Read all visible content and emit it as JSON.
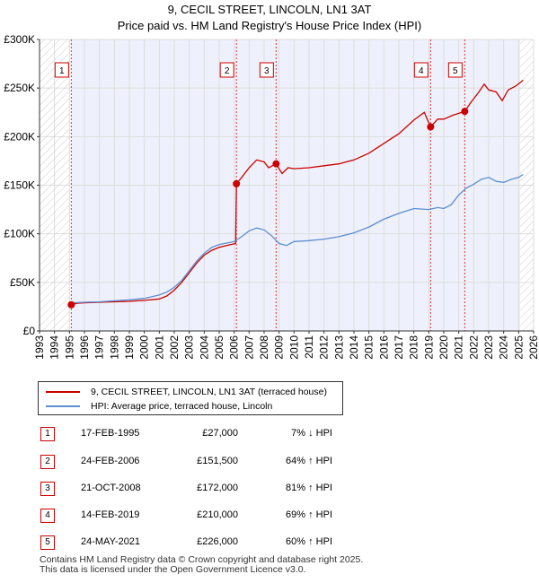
{
  "chart_data": {
    "type": "line",
    "title": "9, CECIL STREET, LINCOLN, LN1 3AT",
    "subtitle": "Price paid vs. HM Land Registry's House Price Index (HPI)",
    "xlabel": "",
    "ylabel": "",
    "xlim": [
      1993,
      2026
    ],
    "ylim": [
      0,
      300000
    ],
    "y_ticks": [
      {
        "value": 0,
        "label": "£0"
      },
      {
        "value": 50000,
        "label": "£50K"
      },
      {
        "value": 100000,
        "label": "£100K"
      },
      {
        "value": 150000,
        "label": "£150K"
      },
      {
        "value": 200000,
        "label": "£200K"
      },
      {
        "value": 250000,
        "label": "£250K"
      },
      {
        "value": 300000,
        "label": "£300K"
      }
    ],
    "x_ticks": [
      "1993",
      "1994",
      "1995",
      "1996",
      "1997",
      "1998",
      "1999",
      "2000",
      "2001",
      "2002",
      "2003",
      "2004",
      "2005",
      "2006",
      "2007",
      "2008",
      "2009",
      "2010",
      "2011",
      "2012",
      "2013",
      "2014",
      "2015",
      "2016",
      "2017",
      "2018",
      "2019",
      "2020",
      "2021",
      "2022",
      "2023",
      "2024",
      "2025",
      "2026"
    ],
    "grid": true,
    "series": [
      {
        "name": "9, CECIL STREET, LINCOLN, LN1 3AT (terraced house)",
        "color": "#cc0000",
        "points": [
          [
            1995.12,
            27000
          ],
          [
            1995.5,
            28500
          ],
          [
            1996,
            29000
          ],
          [
            1997,
            29500
          ],
          [
            1998,
            30000
          ],
          [
            1999,
            30500
          ],
          [
            2000,
            31500
          ],
          [
            2001,
            33000
          ],
          [
            2001.5,
            36000
          ],
          [
            2002,
            42000
          ],
          [
            2002.5,
            50000
          ],
          [
            2003,
            60000
          ],
          [
            2003.5,
            70000
          ],
          [
            2004,
            78000
          ],
          [
            2004.5,
            83000
          ],
          [
            2005,
            86000
          ],
          [
            2005.5,
            88000
          ],
          [
            2006.1,
            90000
          ],
          [
            2006.15,
            151500
          ],
          [
            2006.5,
            158000
          ],
          [
            2007,
            168000
          ],
          [
            2007.5,
            176000
          ],
          [
            2008,
            174000
          ],
          [
            2008.3,
            168000
          ],
          [
            2008.8,
            172000
          ],
          [
            2009.2,
            162000
          ],
          [
            2009.6,
            168000
          ],
          [
            2010,
            167000
          ],
          [
            2011,
            168000
          ],
          [
            2012,
            170000
          ],
          [
            2013,
            172000
          ],
          [
            2014,
            176000
          ],
          [
            2015,
            183000
          ],
          [
            2016,
            193000
          ],
          [
            2017,
            203000
          ],
          [
            2018,
            217000
          ],
          [
            2018.7,
            225000
          ],
          [
            2019.12,
            210000
          ],
          [
            2019.6,
            218000
          ],
          [
            2020,
            218000
          ],
          [
            2020.6,
            222000
          ],
          [
            2021.4,
            226000
          ],
          [
            2021.8,
            235000
          ],
          [
            2022.3,
            245000
          ],
          [
            2022.7,
            254000
          ],
          [
            2023,
            248000
          ],
          [
            2023.5,
            246000
          ],
          [
            2023.9,
            237000
          ],
          [
            2024.3,
            248000
          ],
          [
            2024.8,
            252000
          ],
          [
            2025.3,
            258000
          ]
        ]
      },
      {
        "name": "HPI: Average price, terraced house, Lincoln",
        "color": "#5b8fd0",
        "points": [
          [
            1995.12,
            29000
          ],
          [
            1996,
            29500
          ],
          [
            1997,
            30000
          ],
          [
            1998,
            31000
          ],
          [
            1999,
            32000
          ],
          [
            2000,
            33500
          ],
          [
            2001,
            37000
          ],
          [
            2001.5,
            40000
          ],
          [
            2002,
            45000
          ],
          [
            2002.5,
            52000
          ],
          [
            2003,
            62000
          ],
          [
            2003.5,
            72000
          ],
          [
            2004,
            80000
          ],
          [
            2004.5,
            86000
          ],
          [
            2005,
            89000
          ],
          [
            2005.5,
            90500
          ],
          [
            2006,
            92000
          ],
          [
            2006.5,
            97000
          ],
          [
            2007,
            103000
          ],
          [
            2007.5,
            106000
          ],
          [
            2008,
            104000
          ],
          [
            2008.5,
            98000
          ],
          [
            2009,
            90000
          ],
          [
            2009.5,
            88000
          ],
          [
            2010,
            92000
          ],
          [
            2011,
            93000
          ],
          [
            2012,
            94500
          ],
          [
            2013,
            97000
          ],
          [
            2014,
            101000
          ],
          [
            2015,
            107000
          ],
          [
            2016,
            115000
          ],
          [
            2017,
            121000
          ],
          [
            2018,
            126000
          ],
          [
            2019,
            125000
          ],
          [
            2019.6,
            127000
          ],
          [
            2020,
            126000
          ],
          [
            2020.5,
            130000
          ],
          [
            2021,
            140000
          ],
          [
            2021.5,
            147000
          ],
          [
            2022,
            151000
          ],
          [
            2022.5,
            156000
          ],
          [
            2023,
            158000
          ],
          [
            2023.5,
            154000
          ],
          [
            2024,
            153000
          ],
          [
            2024.5,
            156000
          ],
          [
            2025,
            158000
          ],
          [
            2025.3,
            161000
          ]
        ]
      }
    ],
    "sale_markers": [
      {
        "label": "1",
        "year": 1995.12,
        "value": 27000
      },
      {
        "label": "2",
        "year": 2006.15,
        "value": 151500
      },
      {
        "label": "3",
        "year": 2008.8,
        "value": 172000
      },
      {
        "label": "4",
        "year": 2019.12,
        "value": 210000
      },
      {
        "label": "5",
        "year": 2021.4,
        "value": 226000
      }
    ],
    "hatched_before": 1995,
    "hatched_after": 2025.1
  },
  "legend": {
    "items": [
      {
        "label": "9, CECIL STREET, LINCOLN, LN1 3AT (terraced house)",
        "color": "#cc0000"
      },
      {
        "label": "HPI: Average price, terraced house, Lincoln",
        "color": "#5b8fd0"
      }
    ]
  },
  "sales": [
    {
      "num": "1",
      "date": "17-FEB-1995",
      "price": "£27,000",
      "hpi": "7% ↓ HPI"
    },
    {
      "num": "2",
      "date": "24-FEB-2006",
      "price": "£151,500",
      "hpi": "64% ↑ HPI"
    },
    {
      "num": "3",
      "date": "21-OCT-2008",
      "price": "£172,000",
      "hpi": "81% ↑ HPI"
    },
    {
      "num": "4",
      "date": "14-FEB-2019",
      "price": "£210,000",
      "hpi": "69% ↑ HPI"
    },
    {
      "num": "5",
      "date": "24-MAY-2021",
      "price": "£226,000",
      "hpi": "60% ↑ HPI"
    }
  ],
  "footer": {
    "line1": "Contains HM Land Registry data © Crown copyright and database right 2025.",
    "line2": "This data is licensed under the Open Government Licence v3.0."
  }
}
